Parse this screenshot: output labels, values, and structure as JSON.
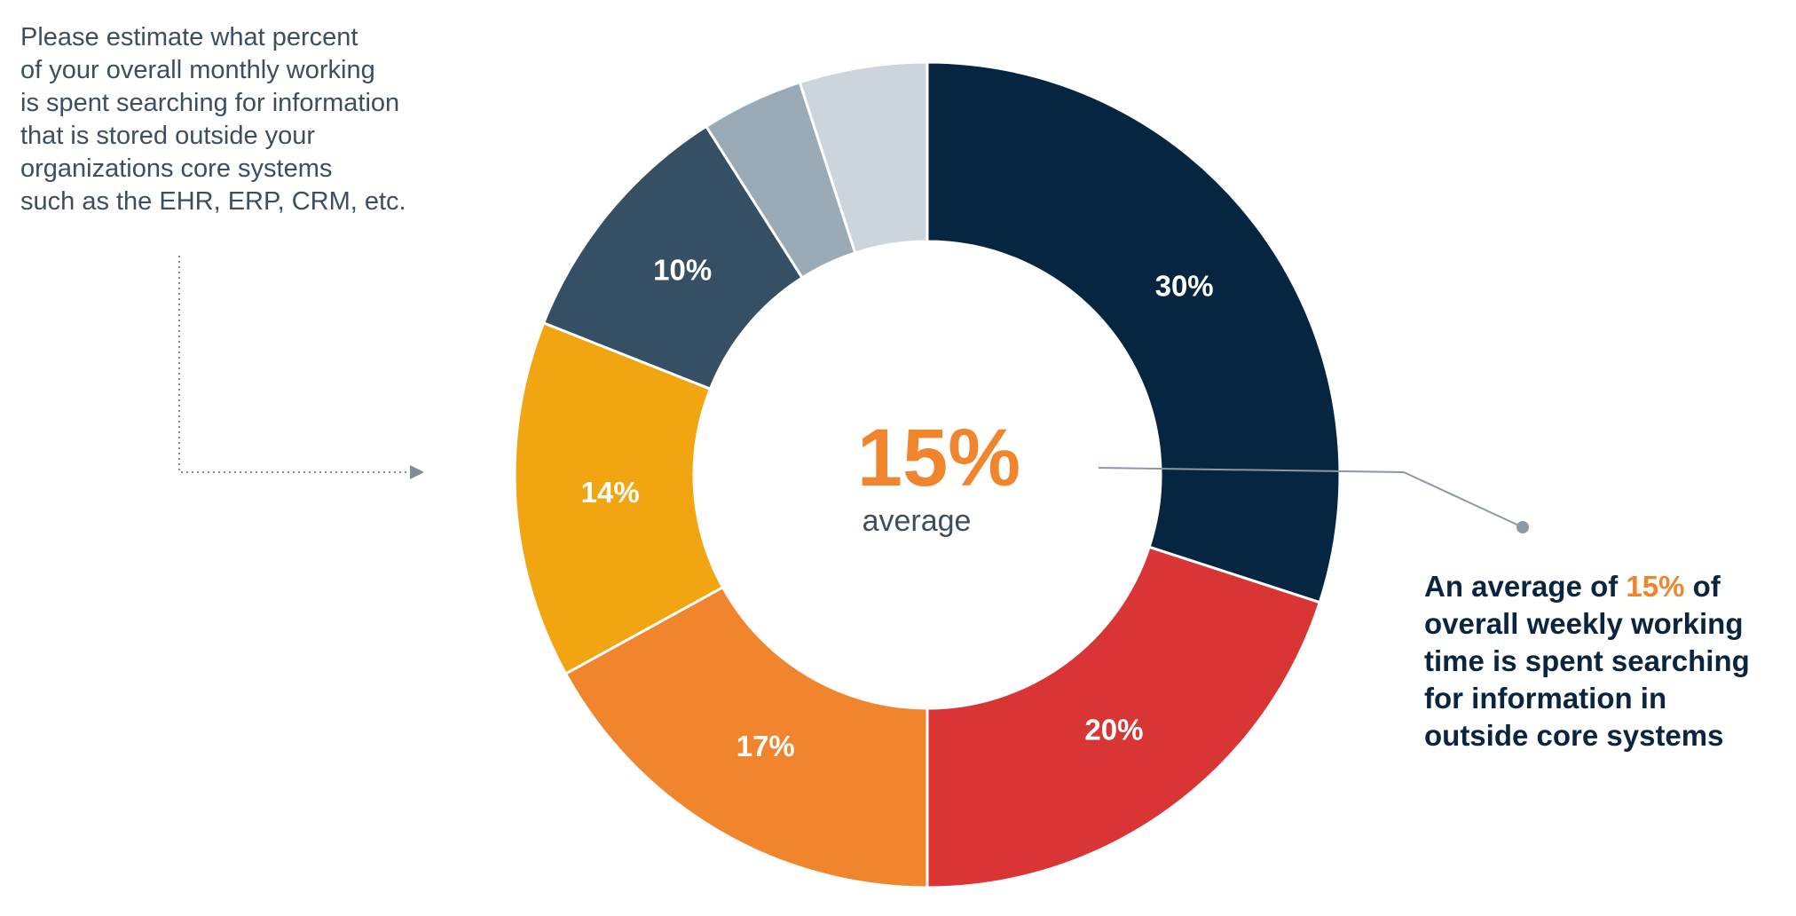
{
  "question": {
    "lines": [
      "Please estimate what percent",
      "of your overall monthly working",
      "is spent searching for information",
      "that is stored outside your",
      "organizations core systems",
      "such as the EHR, ERP, CRM, etc."
    ]
  },
  "center": {
    "value": "15%",
    "caption": "average"
  },
  "callout": {
    "line1_before": "An average of ",
    "line1_highlight": "15%",
    "line1_after": " of",
    "lines": [
      "overall weekly working",
      "time is spent searching",
      "for information in",
      "outside core systems"
    ]
  },
  "colors": {
    "accent": "#f0852d",
    "text_dark": "#0b2540",
    "text_gray": "#3d4f5f",
    "connector": "#8a99a6",
    "background": "#ffffff"
  },
  "chart_data": {
    "type": "pie",
    "style": "donut",
    "title": "",
    "start": "12 o'clock",
    "direction": "clockwise",
    "slices": [
      {
        "value": 30,
        "label": "30%",
        "color": "#062540"
      },
      {
        "value": 20,
        "label": "20%",
        "color": "#d93535"
      },
      {
        "value": 17,
        "label": "17%",
        "color": "#f0852d"
      },
      {
        "value": 14,
        "label": "14%",
        "color": "#f0a511"
      },
      {
        "value": 10,
        "label": "10%",
        "color": "#355064"
      },
      {
        "value": 4,
        "label": "",
        "color": "#9aaab6"
      },
      {
        "value": 5,
        "label": "",
        "color": "#ccd4dc"
      }
    ]
  }
}
